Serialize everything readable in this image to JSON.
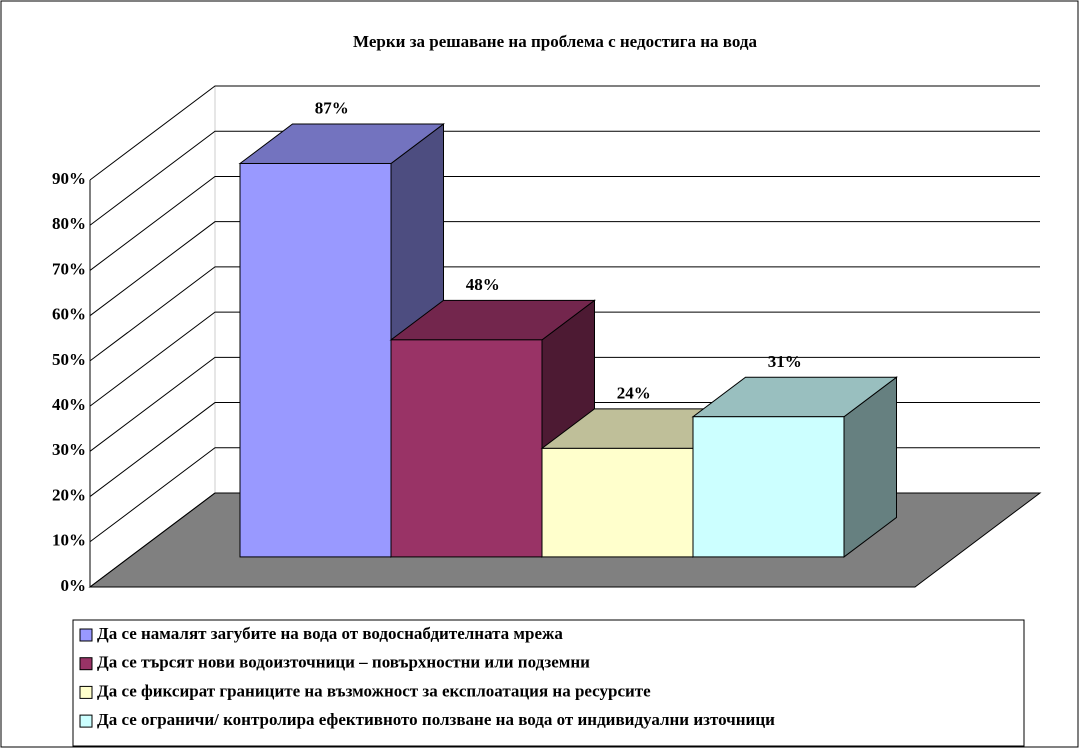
{
  "chart_data": {
    "type": "bar3d",
    "title": "Мерки за решаване на проблема с недостига на вода",
    "series": [
      {
        "name": "Да се намалят загубите на вода от водоснабдителната мрежа",
        "color": "#9999ff",
        "values": [
          87
        ],
        "value_labels": [
          "87%"
        ]
      },
      {
        "name": "Да се търсят нови водоизточници – повърхностни или подземни",
        "color": "#993366",
        "values": [
          48
        ],
        "value_labels": [
          "48%"
        ]
      },
      {
        "name": "Да се фиксират границите на възможност за експлоатация на ресурсите",
        "color": "#ffffcc",
        "values": [
          24
        ],
        "value_labels": [
          "24%"
        ]
      },
      {
        "name": "Да се ограничи/ контролира ефективното ползване на вода от индивидуални източници",
        "color": "#ccffff",
        "values": [
          31
        ],
        "value_labels": [
          "31%"
        ]
      }
    ],
    "ylim": [
      0,
      90
    ],
    "yticks": [
      {
        "value": 0,
        "label": "0%"
      },
      {
        "value": 10,
        "label": "10%"
      },
      {
        "value": 20,
        "label": "20%"
      },
      {
        "value": 30,
        "label": "30%"
      },
      {
        "value": 40,
        "label": "40%"
      },
      {
        "value": 50,
        "label": "50%"
      },
      {
        "value": 60,
        "label": "60%"
      },
      {
        "value": 70,
        "label": "70%"
      },
      {
        "value": 80,
        "label": "80%"
      },
      {
        "value": 90,
        "label": "90%"
      }
    ],
    "grid": true,
    "floor_color": "#808080",
    "legend": "bottom"
  }
}
